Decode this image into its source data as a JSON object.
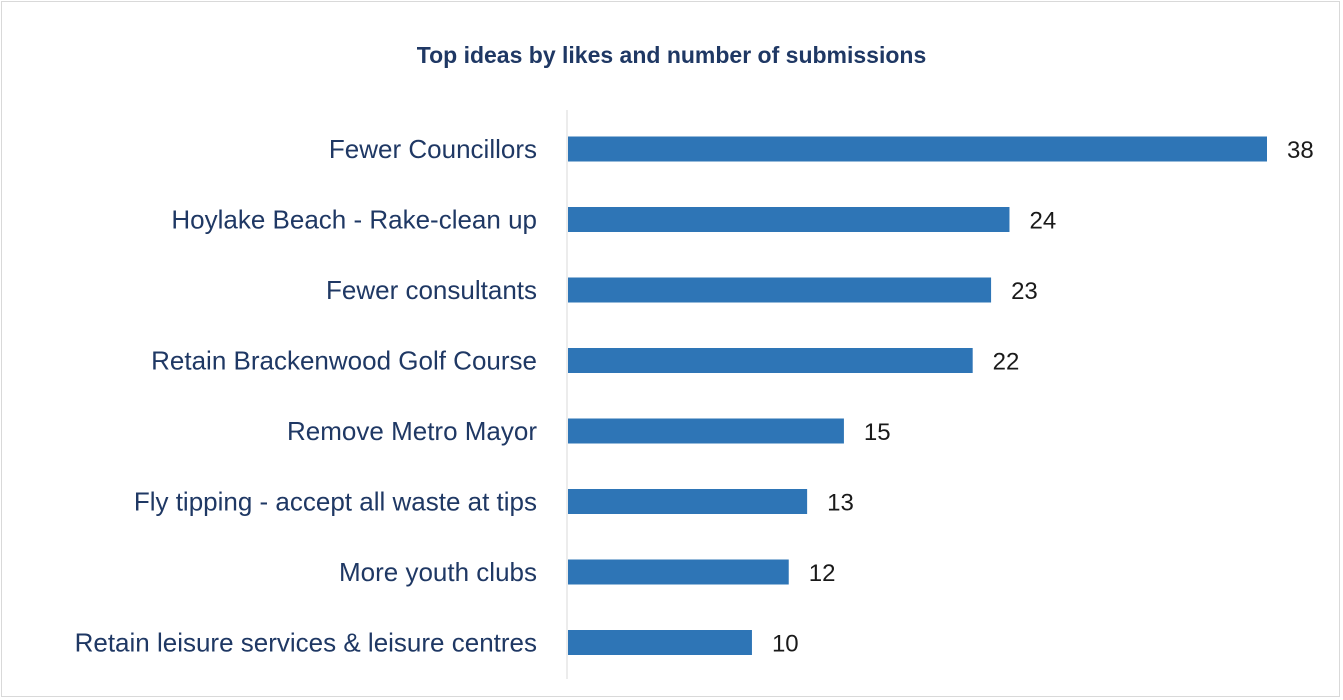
{
  "chart_data": {
    "type": "bar",
    "orientation": "horizontal",
    "title": "Top ideas by likes and number of submissions",
    "categories": [
      "Fewer Councillors",
      "Hoylake Beach - Rake-clean up",
      "Fewer consultants",
      "Retain Brackenwood Golf Course",
      "Remove Metro Mayor",
      "Fly tipping - accept all waste at tips",
      "More youth clubs",
      "Retain leisure services & leisure centres"
    ],
    "values": [
      38,
      24,
      23,
      22,
      15,
      13,
      12,
      10
    ],
    "xlabel": "",
    "ylabel": "",
    "xlim": [
      0,
      38
    ],
    "grid": false,
    "data_labels": true,
    "bar_color": "#2e75b6",
    "label_color": "#1f3864"
  }
}
